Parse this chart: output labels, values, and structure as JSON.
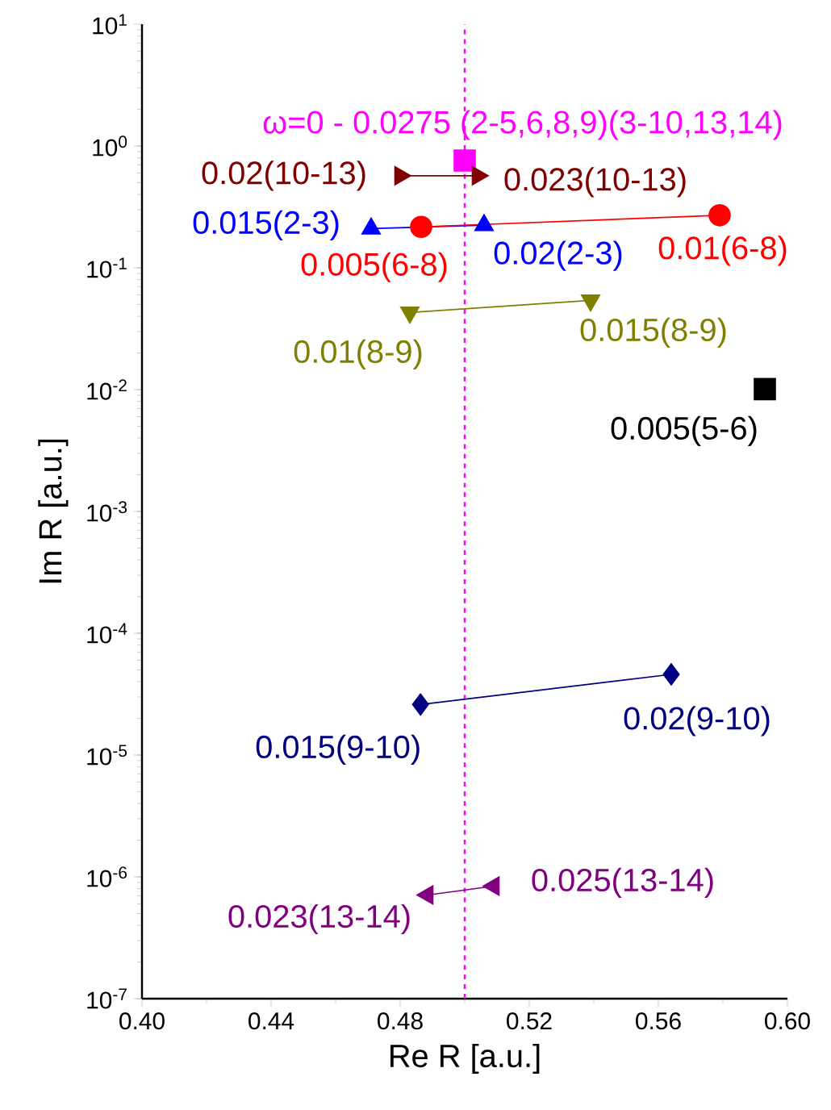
{
  "chart_data": {
    "type": "line",
    "xlabel": "Re R [a.u.]",
    "ylabel": "Im R [a.u.]",
    "log": "y",
    "xlim": [
      0.4,
      0.6
    ],
    "ylim": [
      1e-07,
      10
    ],
    "xticks": [
      {
        "value": 0.4,
        "label": "0.40"
      },
      {
        "value": 0.44,
        "label": "0.44"
      },
      {
        "value": 0.48,
        "label": "0.48"
      },
      {
        "value": 0.52,
        "label": "0.52"
      },
      {
        "value": 0.56,
        "label": "0.56"
      },
      {
        "value": 0.6,
        "label": "0.60"
      }
    ],
    "yticks": [
      {
        "value": 1e-07,
        "label": "10$^{-7}$"
      },
      {
        "value": 1e-06,
        "label": "10$^{-6}$"
      },
      {
        "value": 1e-05,
        "label": "10$^{-5}$"
      },
      {
        "value": 0.0001,
        "label": "10$^{-4}$"
      },
      {
        "value": 0.001,
        "label": "10$^{-3}$"
      },
      {
        "value": 0.01,
        "label": "10$^{-2}$"
      },
      {
        "value": 0.1,
        "label": "10$^{-1}$"
      },
      {
        "value": 1,
        "label": "10$^{0}$"
      },
      {
        "value": 10,
        "label": "10$^{1}$"
      }
    ],
    "series": [
      {
        "color": "#ff00ff",
        "marker": "square",
        "x": [
          0.5
        ],
        "values": [
          0.76
        ]
      },
      {
        "color": "#800000",
        "marker": "triangle-right",
        "x": [
          0.48,
          0.504
        ],
        "values": [
          0.57,
          0.57
        ]
      },
      {
        "color": "#0000ff",
        "marker": "triangle",
        "x": [
          0.471,
          0.506
        ],
        "values": [
          0.21,
          0.224
        ]
      },
      {
        "color": "#ff0000",
        "marker": "circle",
        "x": [
          0.4865,
          0.579
        ],
        "values": [
          0.217,
          0.27
        ]
      },
      {
        "color": "#808000",
        "marker": "triangle-down",
        "x": [
          0.483,
          0.539
        ],
        "values": [
          0.043,
          0.054
        ]
      },
      {
        "color": "#000000",
        "marker": "square",
        "x": [
          0.593
        ],
        "values": [
          0.0101
        ]
      },
      {
        "color": "#000080",
        "marker": "diamond",
        "x": [
          0.4863,
          0.564
        ],
        "values": [
          2.6e-05,
          4.6e-05
        ]
      },
      {
        "color": "#800080",
        "marker": "triangle-left",
        "x": [
          0.4885,
          0.509
        ],
        "values": [
          7.1e-07,
          8.4e-07
        ]
      }
    ],
    "ref_lines": [
      {
        "axis": "x",
        "value": 0.5,
        "color": "#ff00ff",
        "line_style": "dashed"
      }
    ],
    "annotations": [
      {
        "text": "ω=0 - 0.0275  (2-5,6,8,9)(3-10,13,14)",
        "x": 0.5,
        "y": 0.76
      },
      {
        "text": "0.02(10-13)",
        "x": 0.48,
        "y": 0.57
      },
      {
        "text": "0.023(10-13)",
        "x": 0.504,
        "y": 0.57
      },
      {
        "text": "0.015(2-3)",
        "x": 0.471,
        "y": 0.21
      },
      {
        "text": "0.02(2-3)",
        "x": 0.506,
        "y": 0.224
      },
      {
        "text": "0.005(6-8)",
        "x": 0.4865,
        "y": 0.217
      },
      {
        "text": "0.01(6-8)",
        "x": 0.579,
        "y": 0.27
      },
      {
        "text": "0.01(8-9)",
        "x": 0.483,
        "y": 0.043
      },
      {
        "text": "0.015(8-9)",
        "x": 0.539,
        "y": 0.054
      },
      {
        "text": "0.005(5-6)",
        "x": 0.593,
        "y": 0.0101
      },
      {
        "text": "0.015(9-10)",
        "x": 0.4863,
        "y": 2.6e-05
      },
      {
        "text": "0.02(9-10)",
        "x": 0.564,
        "y": 4.6e-05
      },
      {
        "text": "0.023(13-14)",
        "x": 0.4885,
        "y": 7.1e-07
      },
      {
        "text": "0.025(13-14)",
        "x": 0.509,
        "y": 8.4e-07
      }
    ]
  }
}
